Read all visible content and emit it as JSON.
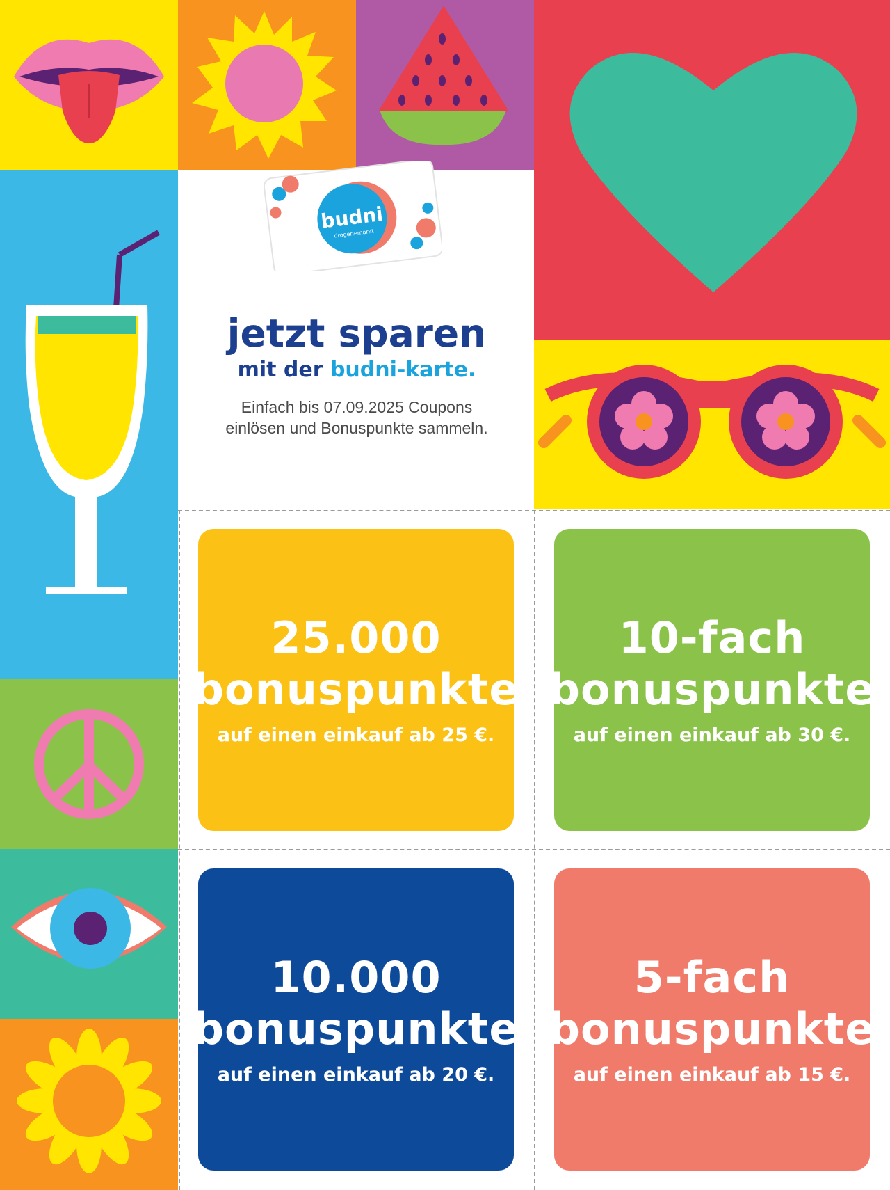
{
  "headline": {
    "line1": "jetzt sparen",
    "line2_prefix": "mit der ",
    "line2_accent": "budni-karte.",
    "desc_line1": "Einfach bis 07.09.2025 Coupons",
    "desc_line2": "einlösen und Bonuspunkte sammeln."
  },
  "card": {
    "brand": "budni",
    "tagline": "drogeriemarkt"
  },
  "coupons": [
    {
      "big1": "25.000",
      "big2": "bonuspunkte",
      "sub": "auf einen einkauf ab 25 €.",
      "color": "#fbc215"
    },
    {
      "big1": "10-fach",
      "big2": "bonuspunkte",
      "sub": "auf einen einkauf ab 30 €.",
      "color": "#8bc34a"
    },
    {
      "big1": "10.000",
      "big2": "bonuspunkte",
      "sub": "auf einen einkauf ab 20 €.",
      "color": "#0e4a9a"
    },
    {
      "big1": "5-fach",
      "big2": "bonuspunkte",
      "sub": "auf einen einkauf ab 15 €.",
      "color": "#f07b6b"
    }
  ],
  "colors": {
    "yellow": "#ffe500",
    "orange": "#f7931e",
    "purple": "#b05aa6",
    "red": "#e8404f",
    "blue": "#3bb8e6",
    "green": "#8bc34a",
    "teal": "#3cbc9d",
    "navy": "#1d3f8f"
  },
  "icons": [
    "lips-icon",
    "sun-icon",
    "watermelon-icon",
    "heart-icon",
    "cocktail-icon",
    "sunglasses-icon",
    "peace-icon",
    "eye-icon",
    "flower-icon",
    "budni-card-icon"
  ]
}
